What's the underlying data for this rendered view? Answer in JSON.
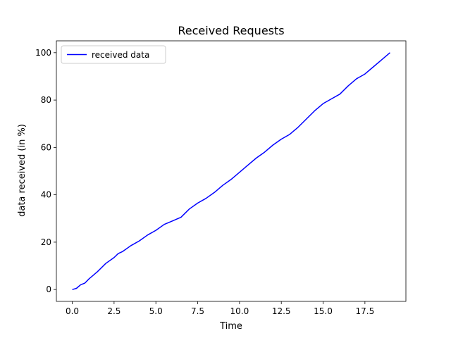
{
  "chart_data": {
    "type": "line",
    "title": "Received Requests",
    "xlabel": "Time",
    "ylabel": "data received (in %)",
    "xlim": [
      -0.95,
      19.95
    ],
    "ylim": [
      -5,
      105
    ],
    "xticks": [
      0.0,
      2.5,
      5.0,
      7.5,
      10.0,
      12.5,
      15.0,
      17.5
    ],
    "xtick_labels": [
      "0.0",
      "2.5",
      "5.0",
      "7.5",
      "10.0",
      "12.5",
      "15.0",
      "17.5"
    ],
    "yticks": [
      0,
      20,
      40,
      60,
      80,
      100
    ],
    "ytick_labels": [
      "0",
      "20",
      "40",
      "60",
      "80",
      "100"
    ],
    "grid": false,
    "legend_position": "top-left",
    "series": [
      {
        "name": "received data",
        "color": "#0000ff",
        "x": [
          0,
          0.25,
          0.5,
          0.75,
          1.0,
          1.5,
          2.0,
          2.5,
          2.75,
          3.0,
          3.5,
          4.0,
          4.5,
          5.0,
          5.5,
          6.0,
          6.5,
          7.0,
          7.5,
          8.0,
          8.5,
          9.0,
          9.5,
          10.0,
          10.5,
          11.0,
          11.5,
          12.0,
          12.5,
          13.0,
          13.5,
          14.0,
          14.5,
          15.0,
          15.5,
          16.0,
          16.5,
          17.0,
          17.5,
          18.0,
          18.5,
          19.0
        ],
        "y": [
          0,
          0.5,
          2.0,
          2.7,
          4.5,
          7.5,
          11.0,
          13.5,
          15.2,
          16.0,
          18.5,
          20.5,
          23.0,
          25.0,
          27.5,
          29.0,
          30.5,
          34.0,
          36.5,
          38.5,
          41.0,
          44.0,
          46.5,
          49.5,
          52.5,
          55.5,
          58.0,
          61.0,
          63.5,
          65.5,
          68.5,
          72.0,
          75.5,
          78.5,
          80.5,
          82.5,
          86.0,
          89.0,
          91.0,
          94.0,
          97.0,
          100.0
        ]
      }
    ]
  }
}
